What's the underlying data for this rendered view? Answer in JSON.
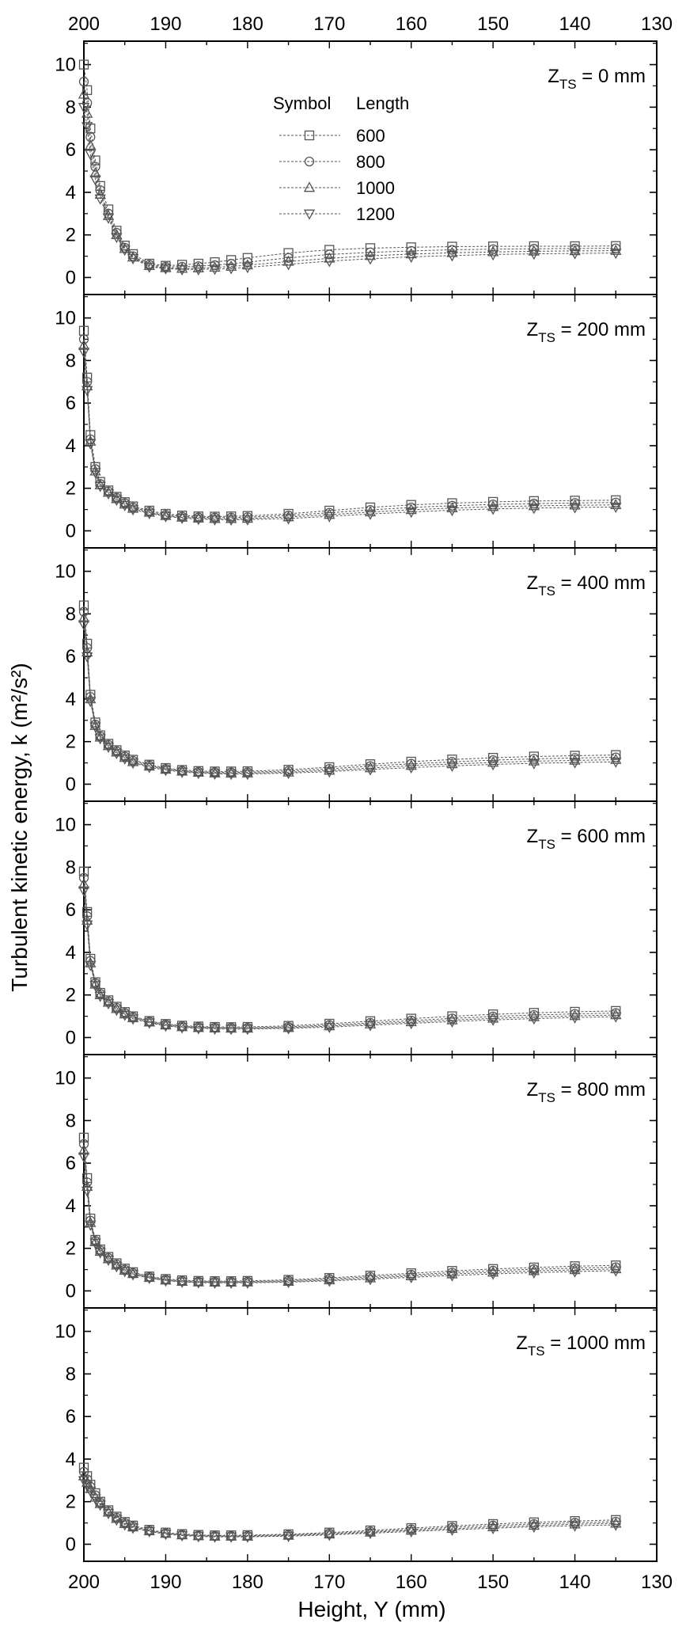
{
  "chart_data": {
    "type": "line",
    "ylabel": "Turbulent kinetic energy, k (m²/s²)",
    "xlabel": "Height, Y (mm)",
    "xlim": [
      200,
      130
    ],
    "x_ticks": [
      "200",
      "190",
      "180",
      "170",
      "160",
      "150",
      "140",
      "130"
    ],
    "ylim": [
      -0.8,
      11.1
    ],
    "y_ticks": [
      "0",
      "2",
      "4",
      "6",
      "8",
      "10"
    ],
    "legend": {
      "header_symbol": "Symbol",
      "header_length": "Length",
      "placement": "top-center of first panel",
      "entries": [
        {
          "label": "600",
          "marker": "square"
        },
        {
          "label": "800",
          "marker": "circle"
        },
        {
          "label": "1000",
          "marker": "triangle-up"
        },
        {
          "label": "1200",
          "marker": "triangle-down"
        }
      ]
    },
    "colors": {
      "series": "#555555",
      "axis": "#000000"
    },
    "x": [
      200,
      199.6,
      199.2,
      198.6,
      198,
      197,
      196,
      195,
      194,
      192,
      190,
      188,
      186,
      184,
      182,
      180,
      175,
      170,
      165,
      160,
      155,
      150,
      145,
      140,
      135
    ],
    "panels": [
      {
        "zts_main": "Z",
        "zts_sub": "TS",
        "zts_rest": " = 0 mm",
        "series": [
          {
            "name": "600",
            "values": [
              10.0,
              8.8,
              7.0,
              5.5,
              4.3,
              3.2,
              2.2,
              1.5,
              1.1,
              0.65,
              0.55,
              0.6,
              0.65,
              0.72,
              0.82,
              0.92,
              1.15,
              1.3,
              1.38,
              1.42,
              1.45,
              1.46,
              1.47,
              1.47,
              1.48
            ]
          },
          {
            "name": "800",
            "values": [
              9.2,
              8.2,
              6.6,
              5.2,
              4.1,
              3.0,
              2.1,
              1.4,
              1.0,
              0.6,
              0.5,
              0.5,
              0.53,
              0.58,
              0.65,
              0.72,
              0.92,
              1.08,
              1.18,
              1.25,
              1.3,
              1.33,
              1.35,
              1.36,
              1.37
            ]
          },
          {
            "name": "1000",
            "values": [
              8.6,
              7.7,
              6.2,
              4.9,
              3.9,
              2.9,
              2.0,
              1.35,
              0.95,
              0.55,
              0.45,
              0.42,
              0.44,
              0.47,
              0.52,
              0.58,
              0.75,
              0.9,
              1.02,
              1.1,
              1.16,
              1.2,
              1.23,
              1.25,
              1.26
            ]
          },
          {
            "name": "1200",
            "values": [
              8.0,
              7.1,
              5.8,
              4.6,
              3.7,
              2.8,
              1.9,
              1.3,
              0.9,
              0.5,
              0.42,
              0.38,
              0.38,
              0.4,
              0.43,
              0.48,
              0.62,
              0.77,
              0.88,
              0.97,
              1.03,
              1.08,
              1.11,
              1.13,
              1.15
            ]
          }
        ]
      },
      {
        "zts_main": "Z",
        "zts_sub": "TS",
        "zts_rest": " = 200 mm",
        "series": [
          {
            "name": "600",
            "values": [
              9.4,
              7.2,
              4.5,
              3.0,
              2.3,
              1.9,
              1.6,
              1.35,
              1.15,
              0.95,
              0.8,
              0.72,
              0.68,
              0.67,
              0.68,
              0.7,
              0.8,
              0.95,
              1.1,
              1.22,
              1.3,
              1.36,
              1.4,
              1.42,
              1.44
            ]
          },
          {
            "name": "800",
            "values": [
              9.0,
              7.0,
              4.3,
              2.9,
              2.2,
              1.85,
              1.55,
              1.3,
              1.1,
              0.9,
              0.75,
              0.67,
              0.63,
              0.62,
              0.62,
              0.64,
              0.72,
              0.85,
              0.98,
              1.1,
              1.18,
              1.24,
              1.28,
              1.31,
              1.33
            ]
          },
          {
            "name": "1000",
            "values": [
              8.7,
              6.8,
              4.2,
              2.8,
              2.15,
              1.8,
              1.5,
              1.25,
              1.05,
              0.86,
              0.71,
              0.63,
              0.59,
              0.57,
              0.57,
              0.58,
              0.65,
              0.76,
              0.88,
              0.99,
              1.07,
              1.13,
              1.17,
              1.2,
              1.22
            ]
          },
          {
            "name": "1200",
            "values": [
              8.4,
              6.6,
              4.1,
              2.75,
              2.1,
              1.75,
              1.45,
              1.2,
              1.0,
              0.82,
              0.68,
              0.6,
              0.55,
              0.53,
              0.52,
              0.53,
              0.58,
              0.68,
              0.79,
              0.89,
              0.97,
              1.03,
              1.07,
              1.1,
              1.12
            ]
          }
        ]
      },
      {
        "zts_main": "Z",
        "zts_sub": "TS",
        "zts_rest": " = 400 mm",
        "series": [
          {
            "name": "600",
            "values": [
              8.4,
              6.6,
              4.2,
              2.9,
              2.3,
              1.9,
              1.6,
              1.35,
              1.15,
              0.92,
              0.76,
              0.67,
              0.62,
              0.6,
              0.6,
              0.61,
              0.68,
              0.8,
              0.94,
              1.06,
              1.16,
              1.24,
              1.3,
              1.34,
              1.37
            ]
          },
          {
            "name": "800",
            "values": [
              8.1,
              6.4,
              4.1,
              2.8,
              2.25,
              1.85,
              1.55,
              1.3,
              1.1,
              0.88,
              0.72,
              0.63,
              0.58,
              0.56,
              0.55,
              0.56,
              0.62,
              0.72,
              0.85,
              0.96,
              1.05,
              1.13,
              1.19,
              1.23,
              1.26
            ]
          },
          {
            "name": "1000",
            "values": [
              7.8,
              6.2,
              4.0,
              2.75,
              2.2,
              1.8,
              1.5,
              1.25,
              1.05,
              0.84,
              0.69,
              0.6,
              0.55,
              0.52,
              0.51,
              0.52,
              0.56,
              0.65,
              0.76,
              0.87,
              0.95,
              1.02,
              1.08,
              1.12,
              1.15
            ]
          },
          {
            "name": "1200",
            "values": [
              7.5,
              6.0,
              3.9,
              2.7,
              2.15,
              1.75,
              1.45,
              1.2,
              1.0,
              0.8,
              0.66,
              0.57,
              0.52,
              0.49,
              0.48,
              0.48,
              0.52,
              0.59,
              0.69,
              0.78,
              0.86,
              0.93,
              0.98,
              1.02,
              1.05
            ]
          }
        ]
      },
      {
        "zts_main": "Z",
        "zts_sub": "TS",
        "zts_rest": " = 600 mm",
        "series": [
          {
            "name": "600",
            "values": [
              7.8,
              5.9,
              3.7,
              2.6,
              2.1,
              1.75,
              1.45,
              1.2,
              1.0,
              0.78,
              0.64,
              0.56,
              0.52,
              0.5,
              0.49,
              0.5,
              0.55,
              0.65,
              0.77,
              0.89,
              1.0,
              1.09,
              1.16,
              1.21,
              1.25
            ]
          },
          {
            "name": "800",
            "values": [
              7.5,
              5.7,
              3.6,
              2.55,
              2.05,
              1.7,
              1.4,
              1.15,
              0.96,
              0.75,
              0.61,
              0.53,
              0.49,
              0.47,
              0.46,
              0.46,
              0.5,
              0.59,
              0.69,
              0.8,
              0.9,
              0.99,
              1.06,
              1.11,
              1.15
            ]
          },
          {
            "name": "1000",
            "values": [
              7.2,
              5.5,
              3.5,
              2.5,
              2.0,
              1.65,
              1.35,
              1.1,
              0.92,
              0.72,
              0.58,
              0.5,
              0.46,
              0.44,
              0.43,
              0.43,
              0.46,
              0.54,
              0.63,
              0.73,
              0.82,
              0.9,
              0.97,
              1.02,
              1.06
            ]
          },
          {
            "name": "1200",
            "values": [
              6.9,
              5.3,
              3.4,
              2.45,
              1.95,
              1.6,
              1.3,
              1.06,
              0.88,
              0.69,
              0.55,
              0.47,
              0.43,
              0.41,
              0.4,
              0.4,
              0.43,
              0.49,
              0.58,
              0.67,
              0.75,
              0.83,
              0.89,
              0.94,
              0.98
            ]
          }
        ]
      },
      {
        "zts_main": "Z",
        "zts_sub": "TS",
        "zts_rest": " = 800 mm",
        "series": [
          {
            "name": "600",
            "values": [
              7.2,
              5.3,
              3.4,
              2.4,
              1.95,
              1.6,
              1.3,
              1.05,
              0.88,
              0.68,
              0.56,
              0.5,
              0.47,
              0.46,
              0.46,
              0.47,
              0.52,
              0.61,
              0.72,
              0.83,
              0.94,
              1.03,
              1.1,
              1.16,
              1.2
            ]
          },
          {
            "name": "800",
            "values": [
              6.9,
              5.1,
              3.3,
              2.35,
              1.9,
              1.55,
              1.25,
              1.0,
              0.84,
              0.65,
              0.53,
              0.47,
              0.44,
              0.43,
              0.43,
              0.44,
              0.48,
              0.56,
              0.66,
              0.76,
              0.86,
              0.95,
              1.02,
              1.07,
              1.11
            ]
          },
          {
            "name": "1000",
            "values": [
              6.6,
              4.9,
              3.2,
              2.3,
              1.85,
              1.5,
              1.2,
              0.96,
              0.8,
              0.62,
              0.5,
              0.44,
              0.41,
              0.4,
              0.4,
              0.41,
              0.44,
              0.51,
              0.6,
              0.7,
              0.79,
              0.87,
              0.94,
              0.99,
              1.03
            ]
          },
          {
            "name": "1200",
            "values": [
              6.3,
              4.7,
              3.1,
              2.25,
              1.8,
              1.45,
              1.15,
              0.92,
              0.77,
              0.6,
              0.48,
              0.42,
              0.39,
              0.38,
              0.38,
              0.38,
              0.41,
              0.47,
              0.55,
              0.64,
              0.72,
              0.8,
              0.86,
              0.91,
              0.95
            ]
          }
        ]
      },
      {
        "zts_main": "Z",
        "zts_sub": "TS",
        "zts_rest": " = 1000 mm",
        "series": [
          {
            "name": "600",
            "values": [
              3.6,
              3.2,
              2.8,
              2.4,
              2.0,
              1.6,
              1.3,
              1.05,
              0.88,
              0.68,
              0.55,
              0.48,
              0.44,
              0.42,
              0.42,
              0.43,
              0.47,
              0.55,
              0.65,
              0.76,
              0.86,
              0.95,
              1.03,
              1.09,
              1.14
            ]
          },
          {
            "name": "800",
            "values": [
              3.4,
              3.05,
              2.7,
              2.3,
              1.95,
              1.55,
              1.25,
              1.0,
              0.84,
              0.65,
              0.52,
              0.45,
              0.41,
              0.39,
              0.39,
              0.4,
              0.44,
              0.51,
              0.6,
              0.7,
              0.79,
              0.88,
              0.95,
              1.01,
              1.06
            ]
          },
          {
            "name": "1000",
            "values": [
              3.2,
              2.9,
              2.6,
              2.2,
              1.9,
              1.5,
              1.2,
              0.96,
              0.8,
              0.62,
              0.5,
              0.43,
              0.39,
              0.37,
              0.37,
              0.37,
              0.41,
              0.47,
              0.56,
              0.65,
              0.73,
              0.81,
              0.88,
              0.94,
              0.98
            ]
          },
          {
            "name": "1200",
            "values": [
              3.0,
              2.75,
              2.5,
              2.15,
              1.85,
              1.45,
              1.15,
              0.92,
              0.77,
              0.6,
              0.48,
              0.41,
              0.37,
              0.35,
              0.35,
              0.35,
              0.38,
              0.44,
              0.52,
              0.6,
              0.68,
              0.75,
              0.82,
              0.87,
              0.91
            ]
          }
        ]
      }
    ]
  }
}
